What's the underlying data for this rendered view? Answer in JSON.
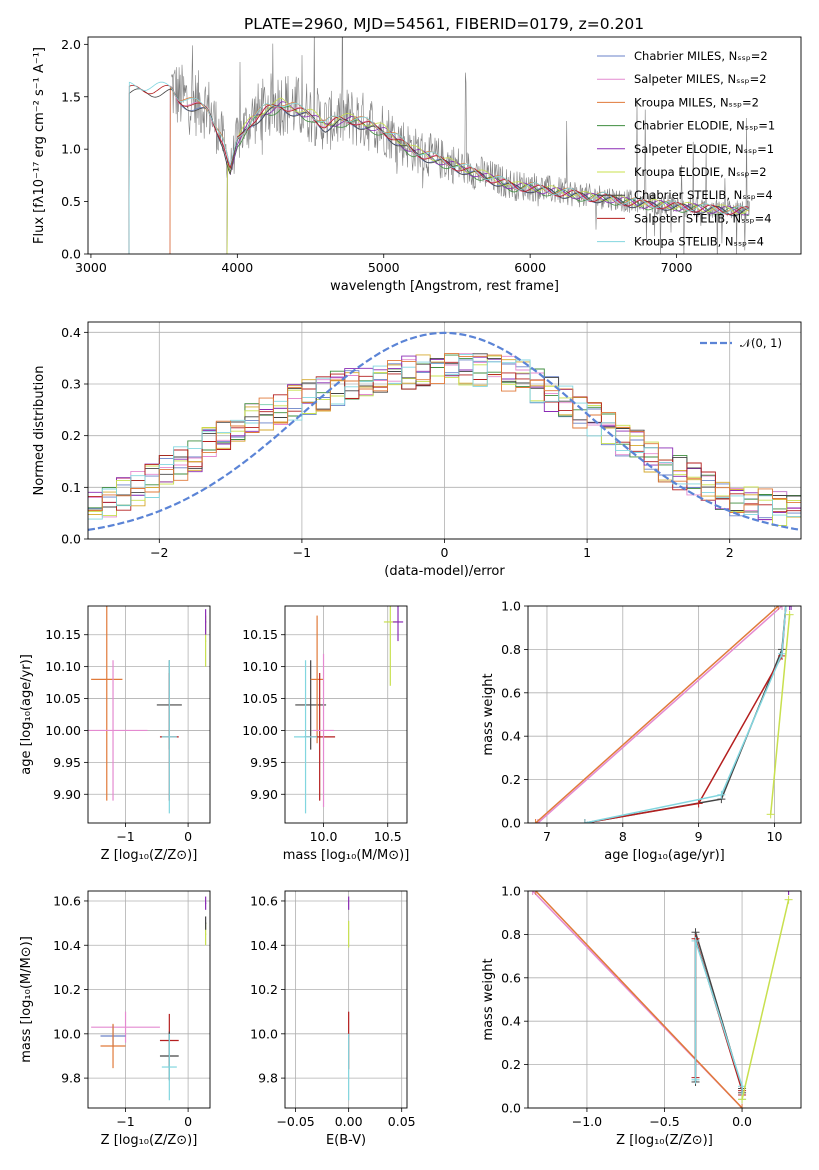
{
  "figure": {
    "title": "PLATE=2960, MJD=54561, FIBERID=0179, z=0.201",
    "colors": [
      "#6a82c8",
      "#e48ad0",
      "#d6a92d",
      "#3f8d3f",
      "#8a2bb5",
      "#c8e04e",
      "#444444",
      "#b41f1f",
      "#82d6df",
      "#e07a3a"
    ]
  },
  "chart_data": [
    {
      "id": "spectrum",
      "type": "line",
      "title": "PLATE=2960, MJD=54561, FIBERID=0179, z=0.201",
      "xlabel": "wavelength [Angstrom, rest frame]",
      "ylabel": "Flux [fλ10⁻¹⁷ erg cm⁻² s⁻¹ A⁻¹]",
      "xlim": [
        2980,
        7850
      ],
      "ylim": [
        0,
        2.07
      ],
      "xticks": [
        3000,
        4000,
        5000,
        6000,
        7000
      ],
      "yticks": [
        0.0,
        0.5,
        1.0,
        1.5,
        2.0
      ],
      "grid": false,
      "legend_position": "top-right",
      "legend": [
        "Chabrier MILES, Nₛₛₚ=2",
        "Salpeter MILES, Nₛₛₚ=2",
        "Kroupa MILES, Nₛₛₚ=2",
        "Chabrier ELODIE, Nₛₛₚ=1",
        "Salpeter ELODIE, Nₛₛₚ=1",
        "Kroupa ELODIE, Nₛₛₚ=2",
        "Chabrier STELIB, Nₛₛₚ=4",
        "Salpeter STELIB, Nₛₛₚ=4",
        "Kroupa STELIB, Nₛₛₚ=4"
      ],
      "data_series": {
        "name": "data",
        "color": "#808080",
        "x": [
          3550,
          3600,
          3700,
          3800,
          3900,
          3950,
          4000,
          4100,
          4200,
          4300,
          4400,
          4500,
          4600,
          4700,
          4800,
          4900,
          5000,
          5100,
          5200,
          5300,
          5400,
          5500,
          5600,
          5700,
          5800,
          5900,
          6000,
          6100,
          6200,
          6300,
          6400,
          6500,
          6600,
          6700,
          6800,
          6900,
          7000,
          7100,
          7200,
          7300,
          7400,
          7500
        ],
        "y": [
          1.6,
          1.5,
          1.45,
          1.4,
          1.1,
          0.8,
          1.1,
          1.3,
          1.4,
          1.45,
          1.4,
          1.35,
          1.25,
          1.3,
          1.3,
          1.25,
          1.2,
          1.1,
          1.0,
          0.95,
          0.9,
          0.85,
          0.8,
          0.75,
          0.7,
          0.65,
          0.65,
          0.62,
          0.6,
          0.58,
          0.55,
          0.55,
          0.52,
          0.5,
          0.48,
          0.48,
          0.46,
          0.45,
          0.44,
          0.43,
          0.42,
          0.42
        ]
      },
      "model_series": [
        {
          "name": "Chabrier MILES",
          "color": "#6a82c8",
          "xstart": 3540
        },
        {
          "name": "Salpeter MILES",
          "color": "#e48ad0",
          "xstart": 3540
        },
        {
          "name": "Kroupa MILES",
          "color": "#e07a3a",
          "xstart": 3540
        },
        {
          "name": "Chabrier ELODIE",
          "color": "#3f8d3f",
          "xstart": 3930
        },
        {
          "name": "Salpeter ELODIE",
          "color": "#8a2bb5",
          "xstart": 3930
        },
        {
          "name": "Kroupa ELODIE",
          "color": "#c8e04e",
          "xstart": 3930
        },
        {
          "name": "Chabrier STELIB",
          "color": "#444444",
          "xstart": 3260
        },
        {
          "name": "Salpeter STELIB",
          "color": "#b41f1f",
          "xstart": 3260
        },
        {
          "name": "Kroupa STELIB",
          "color": "#82d6df",
          "xstart": 3260
        }
      ]
    },
    {
      "id": "residuals",
      "type": "line",
      "xlabel": "(data-model)/error",
      "ylabel": "Normed distribution",
      "xlim": [
        -2.5,
        2.5
      ],
      "ylim": [
        0,
        0.42
      ],
      "xticks": [
        -2,
        -1,
        0,
        1,
        2
      ],
      "yticks": [
        0.0,
        0.1,
        0.2,
        0.3,
        0.4
      ],
      "grid": true,
      "legend_position": "top-right",
      "gaussian": {
        "name": "𝒩(0, 1)",
        "mean": 0,
        "sigma": 1,
        "color": "#5b84d6"
      },
      "histogram_bin_width": 0.1,
      "histogram_envelope": {
        "x": [
          -2.5,
          -2.0,
          -1.5,
          -1.0,
          -0.5,
          0.0,
          0.5,
          1.0,
          1.5,
          2.0,
          2.5
        ],
        "y": [
          0.05,
          0.12,
          0.21,
          0.27,
          0.31,
          0.33,
          0.32,
          0.24,
          0.15,
          0.08,
          0.05
        ]
      }
    },
    {
      "id": "age-vs-Z",
      "type": "scatter",
      "xlabel": "Z [log₁₀(Z/Z⊙)]",
      "ylabel": "age  [log₁₀(age/yr)]",
      "xlim": [
        -1.6,
        0.35
      ],
      "ylim": [
        9.855,
        10.195
      ],
      "xticks": [
        -1,
        0
      ],
      "yticks": [
        9.9,
        9.95,
        10.0,
        10.05,
        10.1,
        10.15
      ],
      "grid": true,
      "points": [
        {
          "x": -1.3,
          "y": 10.08,
          "xerr": 0.25,
          "yerr": 0.19,
          "color": "#e07a3a"
        },
        {
          "x": -1.2,
          "y": 10.0,
          "xerr": 0.55,
          "yerr": 0.11,
          "color": "#e48ad0"
        },
        {
          "x": -0.3,
          "y": 10.04,
          "xerr": 0.2,
          "yerr": 0.07,
          "color": "#444444"
        },
        {
          "x": -0.3,
          "y": 9.99,
          "xerr": 0.15,
          "yerr": 0.1,
          "color": "#b41f1f"
        },
        {
          "x": -0.3,
          "y": 9.99,
          "xerr": 0.12,
          "yerr": 0.12,
          "color": "#82d6df"
        },
        {
          "x": 0.28,
          "y": 10.14,
          "xerr": 0.01,
          "yerr": 0.04,
          "color": "#c8e04e"
        },
        {
          "x": 0.28,
          "y": 10.17,
          "xerr": 0.01,
          "yerr": 0.02,
          "color": "#8a2bb5"
        }
      ]
    },
    {
      "id": "age-vs-mass",
      "type": "scatter",
      "xlabel": "mass [log₁₀(M/M⊙)]",
      "ylabel": "",
      "xlim": [
        9.7,
        10.65
      ],
      "ylim": [
        9.855,
        10.195
      ],
      "xticks": [
        10.0,
        10.5
      ],
      "yticks": [
        9.9,
        9.95,
        10.0,
        10.05,
        10.1,
        10.15
      ],
      "grid": true,
      "points": [
        {
          "x": 9.9,
          "y": 10.04,
          "xerr": 0.12,
          "yerr": 0.07,
          "color": "#444444"
        },
        {
          "x": 9.95,
          "y": 10.08,
          "xerr": 0.05,
          "yerr": 0.1,
          "color": "#e07a3a"
        },
        {
          "x": 9.97,
          "y": 9.99,
          "xerr": 0.12,
          "yerr": 0.1,
          "color": "#b41f1f"
        },
        {
          "x": 9.86,
          "y": 9.99,
          "xerr": 0.09,
          "yerr": 0.12,
          "color": "#82d6df"
        },
        {
          "x": 10.0,
          "y": 10.0,
          "xerr": 0.08,
          "yerr": 0.12,
          "color": "#e48ad0"
        },
        {
          "x": 10.52,
          "y": 10.17,
          "xerr": 0.05,
          "yerr": 0.1,
          "color": "#c8e04e"
        },
        {
          "x": 10.58,
          "y": 10.17,
          "xerr": 0.04,
          "yerr": 0.03,
          "color": "#8a2bb5"
        }
      ]
    },
    {
      "id": "mass-weight-vs-age",
      "type": "line",
      "xlabel": "age  [log₁₀(age/yr)]",
      "ylabel": "mass weight",
      "xlim": [
        6.75,
        10.35
      ],
      "ylim": [
        0,
        1.0
      ],
      "xticks": [
        7,
        8,
        9,
        10
      ],
      "yticks": [
        0.0,
        0.2,
        0.4,
        0.6,
        0.8,
        1.0
      ],
      "grid": true,
      "series": [
        {
          "name": "Salpeter MILES",
          "color": "#e48ad0",
          "x": [
            6.88,
            10.1
          ],
          "y": [
            0.0,
            1.0
          ]
        },
        {
          "name": "Kroupa MILES",
          "color": "#e07a3a",
          "x": [
            6.85,
            10.05
          ],
          "y": [
            0.0,
            1.0
          ]
        },
        {
          "name": "Chabrier STELIB",
          "color": "#444444",
          "x": [
            7.5,
            9.3,
            10.1,
            10.15
          ],
          "y": [
            0.0,
            0.11,
            0.8,
            1.0
          ]
        },
        {
          "name": "Salpeter STELIB",
          "color": "#b41f1f",
          "x": [
            7.5,
            9.0,
            10.1,
            10.15
          ],
          "y": [
            0.0,
            0.09,
            0.77,
            1.0
          ]
        },
        {
          "name": "Kroupa STELIB",
          "color": "#82d6df",
          "x": [
            7.5,
            9.3,
            10.1,
            10.15
          ],
          "y": [
            0.0,
            0.13,
            0.78,
            1.0
          ]
        },
        {
          "name": "Kroupa ELODIE",
          "color": "#c8e04e",
          "x": [
            9.95,
            10.2
          ],
          "y": [
            0.04,
            0.96
          ]
        },
        {
          "name": "Salpeter ELODIE",
          "color": "#8a2bb5",
          "x": [
            10.2,
            10.22
          ],
          "y": [
            1.0,
            1.0
          ]
        }
      ]
    },
    {
      "id": "mass-vs-Z",
      "type": "scatter",
      "xlabel": "Z [log₁₀(Z/Z⊙)]",
      "ylabel": "mass [log₁₀(M/M⊙)]",
      "xlim": [
        -1.6,
        0.35
      ],
      "ylim": [
        9.665,
        10.645
      ],
      "xticks": [
        -1,
        0
      ],
      "yticks": [
        9.8,
        10.0,
        10.2,
        10.4,
        10.6
      ],
      "grid": true,
      "points": [
        {
          "x": -1.0,
          "y": 10.03,
          "xerr": 0.55,
          "yerr": 0.07,
          "color": "#e48ad0"
        },
        {
          "x": -1.2,
          "y": 9.99,
          "xerr": 0.2,
          "yerr": 0.05,
          "color": "#6a82c8"
        },
        {
          "x": -1.2,
          "y": 9.945,
          "xerr": 0.2,
          "yerr": 0.1,
          "color": "#e07a3a"
        },
        {
          "x": -0.3,
          "y": 9.97,
          "xerr": 0.15,
          "yerr": 0.12,
          "color": "#b41f1f"
        },
        {
          "x": -0.3,
          "y": 9.9,
          "xerr": 0.15,
          "yerr": 0.11,
          "color": "#444444"
        },
        {
          "x": -0.3,
          "y": 9.85,
          "xerr": 0.12,
          "yerr": 0.15,
          "color": "#82d6df"
        },
        {
          "x": 0.28,
          "y": 10.45,
          "xerr": 0.01,
          "yerr": 0.05,
          "color": "#c8e04e"
        },
        {
          "x": 0.28,
          "y": 10.59,
          "xerr": 0.01,
          "yerr": 0.03,
          "color": "#8a2bb5"
        },
        {
          "x": 0.28,
          "y": 10.5,
          "xerr": 0.01,
          "yerr": 0.03,
          "color": "#444444"
        }
      ]
    },
    {
      "id": "mass-vs-EBV",
      "type": "scatter",
      "xlabel": "E(B-V)",
      "ylabel": "",
      "xlim": [
        -0.06,
        0.055
      ],
      "ylim": [
        9.665,
        10.645
      ],
      "xticks": [
        -0.05,
        0.0,
        0.05
      ],
      "yticks": [
        9.8,
        10.0,
        10.2,
        10.4,
        10.6
      ],
      "grid": true,
      "points": [
        {
          "x": 0.0,
          "y": 9.97,
          "xerr": 0.0,
          "yerr": 0.13,
          "color": "#b41f1f"
        },
        {
          "x": 0.0,
          "y": 9.85,
          "xerr": 0.0,
          "yerr": 0.15,
          "color": "#82d6df"
        },
        {
          "x": 0.0,
          "y": 10.45,
          "xerr": 0.0,
          "yerr": 0.06,
          "color": "#c8e04e"
        },
        {
          "x": 0.0,
          "y": 10.59,
          "xerr": 0.0,
          "yerr": 0.03,
          "color": "#8a2bb5"
        }
      ]
    },
    {
      "id": "mass-weight-vs-Z",
      "type": "line",
      "xlabel": "Z [log₁₀(Z/Z⊙)]",
      "ylabel": "mass weight",
      "xlim": [
        -1.38,
        0.38
      ],
      "ylim": [
        0,
        1.0
      ],
      "xticks": [
        -1.0,
        -0.5,
        0.0
      ],
      "yticks": [
        0.0,
        0.2,
        0.4,
        0.6,
        0.8,
        1.0
      ],
      "grid": true,
      "series": [
        {
          "name": "Salpeter MILES",
          "color": "#e48ad0",
          "x": [
            -1.35,
            0.0
          ],
          "y": [
            1.0,
            0.0
          ]
        },
        {
          "name": "Kroupa MILES",
          "color": "#e07a3a",
          "x": [
            -1.33,
            0.0
          ],
          "y": [
            1.0,
            0.0
          ]
        },
        {
          "name": "Chabrier STELIB",
          "color": "#444444",
          "x": [
            -0.3,
            -0.3,
            0.0,
            0.0
          ],
          "y": [
            0.12,
            0.81,
            0.09,
            0.07
          ]
        },
        {
          "name": "Salpeter STELIB",
          "color": "#b41f1f",
          "x": [
            -0.3,
            -0.3,
            0.0,
            0.0
          ],
          "y": [
            0.14,
            0.78,
            0.08,
            0.06
          ]
        },
        {
          "name": "Kroupa STELIB",
          "color": "#82d6df",
          "x": [
            -0.3,
            -0.3,
            0.0,
            0.0
          ],
          "y": [
            0.13,
            0.77,
            0.1,
            0.04
          ]
        },
        {
          "name": "Kroupa ELODIE",
          "color": "#c8e04e",
          "x": [
            0.0,
            0.3
          ],
          "y": [
            0.04,
            0.96
          ]
        },
        {
          "name": "Salpeter ELODIE",
          "color": "#8a2bb5",
          "x": [
            0.3,
            0.3
          ],
          "y": [
            1.0,
            1.0
          ]
        }
      ]
    }
  ]
}
